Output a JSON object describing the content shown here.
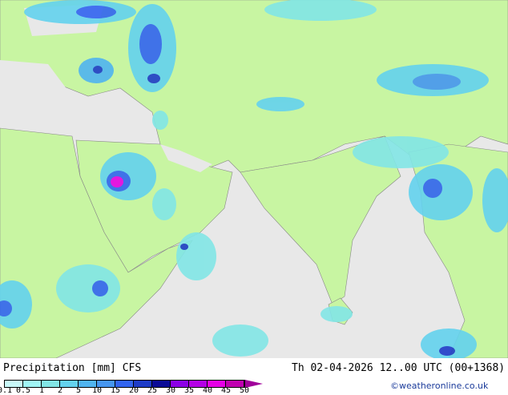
{
  "legend": {
    "title": "Precipitation [mm]",
    "model": "CFS",
    "ticks": [
      "0.1",
      "0.5",
      "1",
      "2",
      "5",
      "10",
      "15",
      "20",
      "25",
      "30",
      "35",
      "40",
      "45",
      "50"
    ],
    "colors": [
      "#c8f8f8",
      "#a0f5f5",
      "#82e6e6",
      "#64d2ee",
      "#50b4f0",
      "#4696f0",
      "#3264f0",
      "#1e3cc8",
      "#0a0a96",
      "#8c00e6",
      "#b400e6",
      "#e600e6",
      "#c000b0"
    ]
  },
  "valid_time": "Th 02-04-2026 12..00 UTC (00+1368)",
  "credit": "©weatheronline.co.uk",
  "map_colors": {
    "land": "#c8f5a2",
    "sea": "#e8e8e8"
  }
}
